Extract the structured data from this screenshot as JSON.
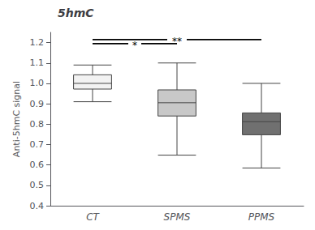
{
  "chart_data": {
    "type": "box",
    "title": "5hmC",
    "ylabel": "Anti-5hmC signal",
    "categories": [
      "CT",
      "SPMS",
      "PPMS"
    ],
    "boxes": [
      {
        "median": 1.0,
        "q1": 0.972,
        "q3": 1.042,
        "whislo": 0.91,
        "whishi": 1.09
      },
      {
        "median": 0.905,
        "q1": 0.84,
        "q3": 0.968,
        "whislo": 0.648,
        "whishi": 1.1
      },
      {
        "median": 0.812,
        "q1": 0.748,
        "q3": 0.855,
        "whislo": 0.585,
        "whishi": 1.0
      }
    ],
    "colors": [
      "#f2f2f2",
      "#c8c8c8",
      "#707070"
    ],
    "ylim": [
      0.4,
      1.25
    ],
    "yticks": [
      0.4,
      0.5,
      0.6,
      0.7,
      0.8,
      0.9,
      {
        "value": 1.0,
        "label": "1.0"
      },
      1.1,
      1.2
    ],
    "annotations": [
      {
        "x1": "CT",
        "x2": "SPMS",
        "y": 1.195,
        "label": "*"
      },
      {
        "x1": "CT",
        "x2": "PPMS",
        "y": 1.215,
        "label": "**"
      }
    ],
    "grid": false
  }
}
